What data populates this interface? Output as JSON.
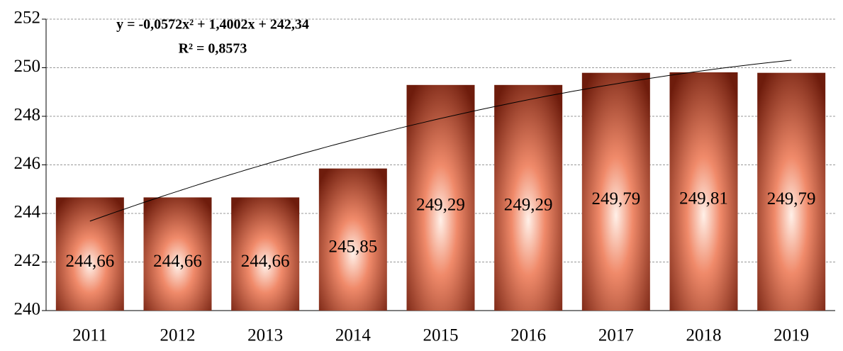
{
  "chart_data": {
    "type": "bar",
    "categories": [
      "2011",
      "2012",
      "2013",
      "2014",
      "2015",
      "2016",
      "2017",
      "2018",
      "2019"
    ],
    "values": [
      244.66,
      244.66,
      244.66,
      245.85,
      249.29,
      249.29,
      249.79,
      249.81,
      249.79
    ],
    "value_labels": [
      "244,66",
      "244,66",
      "244,66",
      "245,85",
      "249,29",
      "249,29",
      "249,79",
      "249,81",
      "249,79"
    ],
    "color": "#6e1c0c",
    "ylim": [
      240,
      252
    ],
    "yticks": [
      240,
      242,
      244,
      246,
      248,
      250,
      252
    ],
    "grid": true,
    "trendline": {
      "equation": "y = -0,0572x² + 1,4002x + 242,34",
      "r2": "R² = 0,8573",
      "coefficients": [
        -0.0572,
        1.4002,
        242.34
      ]
    }
  }
}
